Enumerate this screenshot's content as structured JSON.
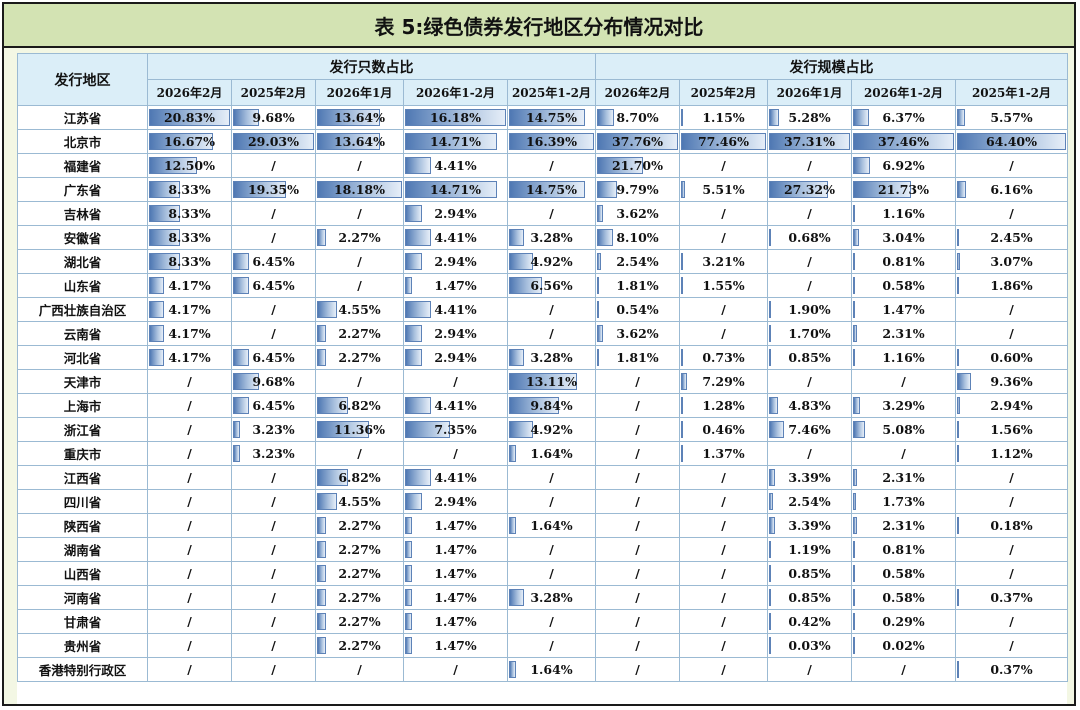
{
  "title": "表 5:绿色债券发行地区分布情况对比",
  "header": {
    "region_label": "发行地区",
    "group_count": "发行只数占比",
    "group_scale": "发行规模占比",
    "periods": [
      "2026年2月",
      "2025年2月",
      "2026年1月",
      "2026年1-2月",
      "2025年1-2月"
    ]
  },
  "bar_color": "#4f78b3",
  "rows": [
    {
      "region": "江苏省",
      "count": [
        "20.83%",
        "9.68%",
        "13.64%",
        "16.18%",
        "14.75%"
      ],
      "scale": [
        "8.70%",
        "1.15%",
        "5.28%",
        "6.37%",
        "5.57%"
      ]
    },
    {
      "region": "北京市",
      "count": [
        "16.67%",
        "29.03%",
        "13.64%",
        "14.71%",
        "16.39%"
      ],
      "scale": [
        "37.76%",
        "77.46%",
        "37.31%",
        "37.46%",
        "64.40%"
      ]
    },
    {
      "region": "福建省",
      "count": [
        "12.50%",
        "/",
        "/",
        "4.41%",
        "/"
      ],
      "scale": [
        "21.70%",
        "/",
        "/",
        "6.92%",
        "/"
      ]
    },
    {
      "region": "广东省",
      "count": [
        "8.33%",
        "19.35%",
        "18.18%",
        "14.71%",
        "14.75%"
      ],
      "scale": [
        "9.79%",
        "5.51%",
        "27.32%",
        "21.73%",
        "6.16%"
      ]
    },
    {
      "region": "吉林省",
      "count": [
        "8.33%",
        "/",
        "/",
        "2.94%",
        "/"
      ],
      "scale": [
        "3.62%",
        "/",
        "/",
        "1.16%",
        "/"
      ]
    },
    {
      "region": "安徽省",
      "count": [
        "8.33%",
        "/",
        "2.27%",
        "4.41%",
        "3.28%"
      ],
      "scale": [
        "8.10%",
        "/",
        "0.68%",
        "3.04%",
        "2.45%"
      ]
    },
    {
      "region": "湖北省",
      "count": [
        "8.33%",
        "6.45%",
        "/",
        "2.94%",
        "4.92%"
      ],
      "scale": [
        "2.54%",
        "3.21%",
        "/",
        "0.81%",
        "3.07%"
      ]
    },
    {
      "region": "山东省",
      "count": [
        "4.17%",
        "6.45%",
        "/",
        "1.47%",
        "6.56%"
      ],
      "scale": [
        "1.81%",
        "1.55%",
        "/",
        "0.58%",
        "1.86%"
      ]
    },
    {
      "region": "广西壮族自治区",
      "count": [
        "4.17%",
        "/",
        "4.55%",
        "4.41%",
        "/"
      ],
      "scale": [
        "0.54%",
        "/",
        "1.90%",
        "1.47%",
        "/"
      ]
    },
    {
      "region": "云南省",
      "count": [
        "4.17%",
        "/",
        "2.27%",
        "2.94%",
        "/"
      ],
      "scale": [
        "3.62%",
        "/",
        "1.70%",
        "2.31%",
        "/"
      ]
    },
    {
      "region": "河北省",
      "count": [
        "4.17%",
        "6.45%",
        "2.27%",
        "2.94%",
        "3.28%"
      ],
      "scale": [
        "1.81%",
        "0.73%",
        "0.85%",
        "1.16%",
        "0.60%"
      ]
    },
    {
      "region": "天津市",
      "count": [
        "/",
        "9.68%",
        "/",
        "/",
        "13.11%"
      ],
      "scale": [
        "/",
        "7.29%",
        "/",
        "/",
        "9.36%"
      ]
    },
    {
      "region": "上海市",
      "count": [
        "/",
        "6.45%",
        "6.82%",
        "4.41%",
        "9.84%"
      ],
      "scale": [
        "/",
        "1.28%",
        "4.83%",
        "3.29%",
        "2.94%"
      ]
    },
    {
      "region": "浙江省",
      "count": [
        "/",
        "3.23%",
        "11.36%",
        "7.35%",
        "4.92%"
      ],
      "scale": [
        "/",
        "0.46%",
        "7.46%",
        "5.08%",
        "1.56%"
      ]
    },
    {
      "region": "重庆市",
      "count": [
        "/",
        "3.23%",
        "/",
        "/",
        "1.64%"
      ],
      "scale": [
        "/",
        "1.37%",
        "/",
        "/",
        "1.12%"
      ]
    },
    {
      "region": "江西省",
      "count": [
        "/",
        "/",
        "6.82%",
        "4.41%",
        "/"
      ],
      "scale": [
        "/",
        "/",
        "3.39%",
        "2.31%",
        "/"
      ]
    },
    {
      "region": "四川省",
      "count": [
        "/",
        "/",
        "4.55%",
        "2.94%",
        "/"
      ],
      "scale": [
        "/",
        "/",
        "2.54%",
        "1.73%",
        "/"
      ]
    },
    {
      "region": "陕西省",
      "count": [
        "/",
        "/",
        "2.27%",
        "1.47%",
        "1.64%"
      ],
      "scale": [
        "/",
        "/",
        "3.39%",
        "2.31%",
        "0.18%"
      ]
    },
    {
      "region": "湖南省",
      "count": [
        "/",
        "/",
        "2.27%",
        "1.47%",
        "/"
      ],
      "scale": [
        "/",
        "/",
        "1.19%",
        "0.81%",
        "/"
      ]
    },
    {
      "region": "山西省",
      "count": [
        "/",
        "/",
        "2.27%",
        "1.47%",
        "/"
      ],
      "scale": [
        "/",
        "/",
        "0.85%",
        "0.58%",
        "/"
      ]
    },
    {
      "region": "河南省",
      "count": [
        "/",
        "/",
        "2.27%",
        "1.47%",
        "3.28%"
      ],
      "scale": [
        "/",
        "/",
        "0.85%",
        "0.58%",
        "0.37%"
      ]
    },
    {
      "region": "甘肃省",
      "count": [
        "/",
        "/",
        "2.27%",
        "1.47%",
        "/"
      ],
      "scale": [
        "/",
        "/",
        "0.42%",
        "0.29%",
        "/"
      ]
    },
    {
      "region": "贵州省",
      "count": [
        "/",
        "/",
        "2.27%",
        "1.47%",
        "/"
      ],
      "scale": [
        "/",
        "/",
        "0.03%",
        "0.02%",
        "/"
      ]
    },
    {
      "region": "香港特别行政区",
      "count": [
        "/",
        "/",
        "/",
        "/",
        "1.64%"
      ],
      "scale": [
        "/",
        "/",
        "/",
        "/",
        "0.37%"
      ]
    }
  ]
}
